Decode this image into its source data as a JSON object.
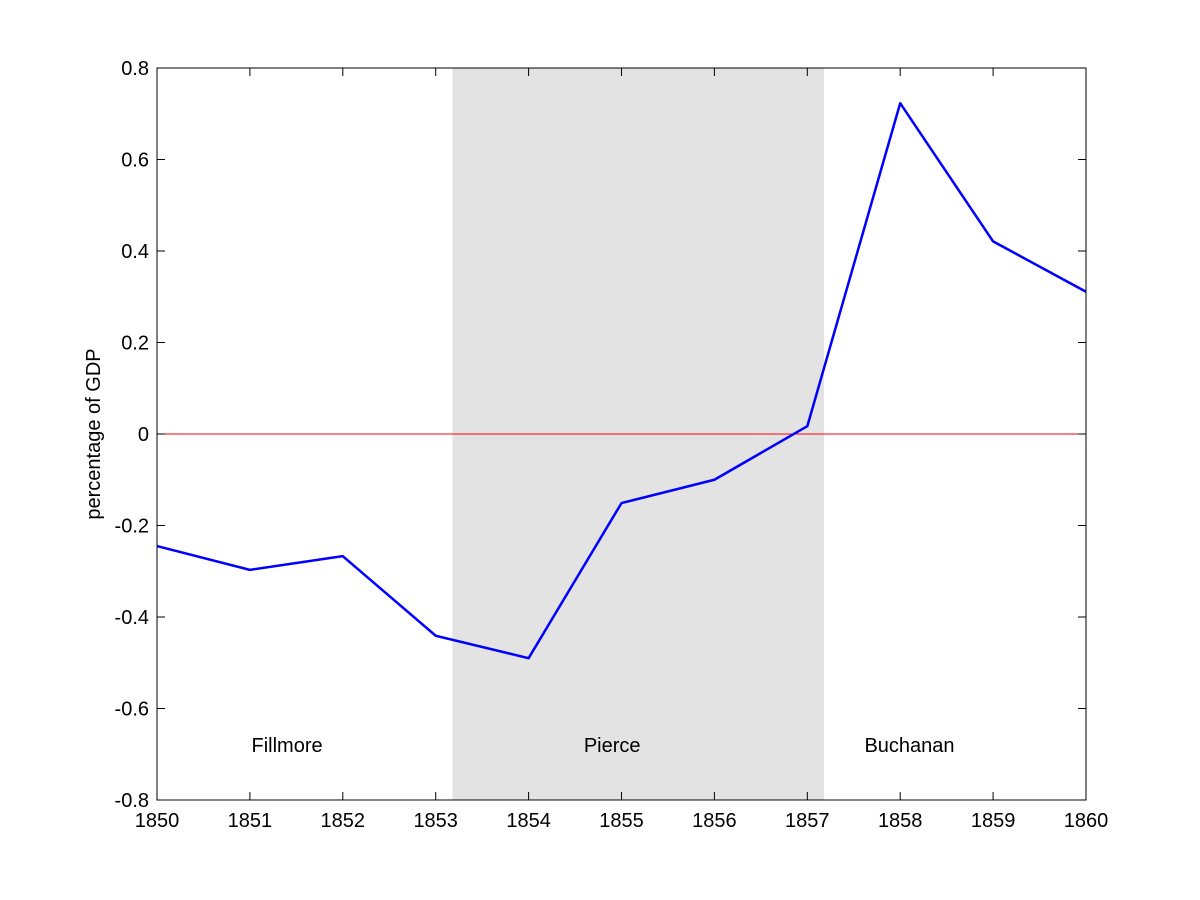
{
  "chart_data": {
    "type": "line",
    "title": "",
    "xlabel": "",
    "ylabel": "percentage of GDP",
    "xlim": [
      1850,
      1860
    ],
    "ylim": [
      -0.8,
      0.8
    ],
    "x_ticks": [
      1850,
      1851,
      1852,
      1853,
      1854,
      1855,
      1856,
      1857,
      1858,
      1859,
      1860
    ],
    "x_tick_labels": [
      "1850",
      "1851",
      "1852",
      "1853",
      "1854",
      "1855",
      "1856",
      "1857",
      "1858",
      "1859",
      "1860"
    ],
    "y_ticks": [
      -0.8,
      -0.6,
      -0.4,
      -0.2,
      0,
      0.2,
      0.4,
      0.6,
      0.8
    ],
    "y_tick_labels": [
      "-0.8",
      "-0.6",
      "-0.4",
      "-0.2",
      "0",
      "0.2",
      "0.4",
      "0.6",
      "0.8"
    ],
    "grid": false,
    "legend": "none",
    "series": [
      {
        "color": "#0000ff",
        "x": [
          1850,
          1851,
          1852,
          1853,
          1854,
          1855,
          1856,
          1857,
          1858,
          1859,
          1860
        ],
        "values": [
          -0.245,
          -0.297,
          -0.267,
          -0.441,
          -0.49,
          -0.151,
          -0.1,
          0.017,
          0.723,
          0.421,
          0.311
        ]
      }
    ],
    "reference_lines": [
      {
        "y": 0,
        "color": "#ff0000"
      }
    ],
    "shaded_regions": [
      {
        "x_start": 1853.18,
        "x_end": 1857.18,
        "color": "#e3e3e3"
      }
    ],
    "annotations": [
      {
        "text": "Fillmore",
        "x": 1851.4,
        "y": -0.68
      },
      {
        "text": "Pierce",
        "x": 1854.9,
        "y": -0.68
      },
      {
        "text": "Buchanan",
        "x": 1858.1,
        "y": -0.68
      }
    ]
  }
}
